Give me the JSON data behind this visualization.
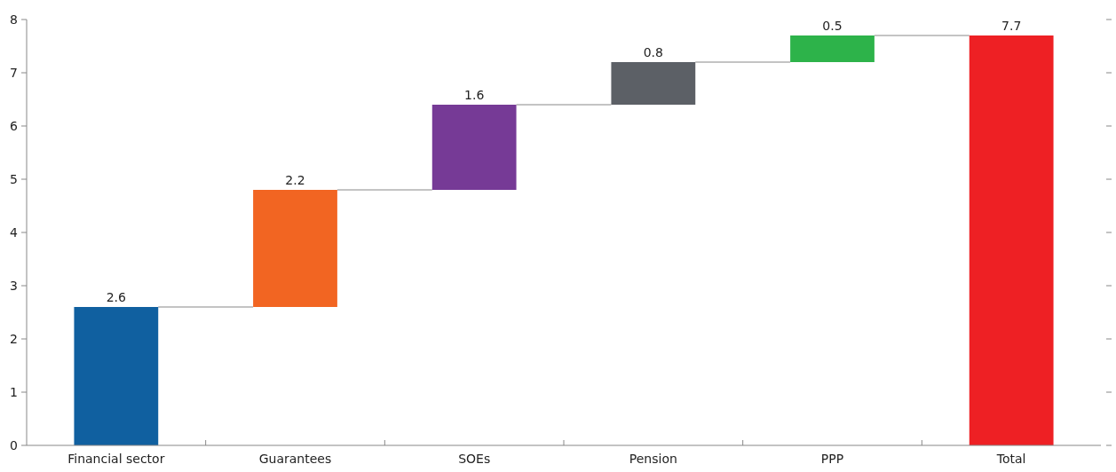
{
  "chart_data": {
    "type": "bar",
    "categories": [
      "Financial sector",
      "Guarantees",
      "SOEs",
      "Pension",
      "PPP",
      "Total"
    ],
    "values": [
      2.6,
      2.2,
      1.6,
      0.8,
      0.5,
      7.7
    ],
    "base": [
      0,
      2.6,
      4.8,
      6.4,
      7.2,
      0
    ],
    "colors": [
      "#1060a0",
      "#f26522",
      "#763a96",
      "#5c6066",
      "#2db34a",
      "#ee2024"
    ],
    "ylim": [
      0,
      8
    ],
    "yticks": [
      0,
      1,
      2,
      3,
      4,
      5,
      6,
      7,
      8
    ],
    "data_labels": true
  }
}
